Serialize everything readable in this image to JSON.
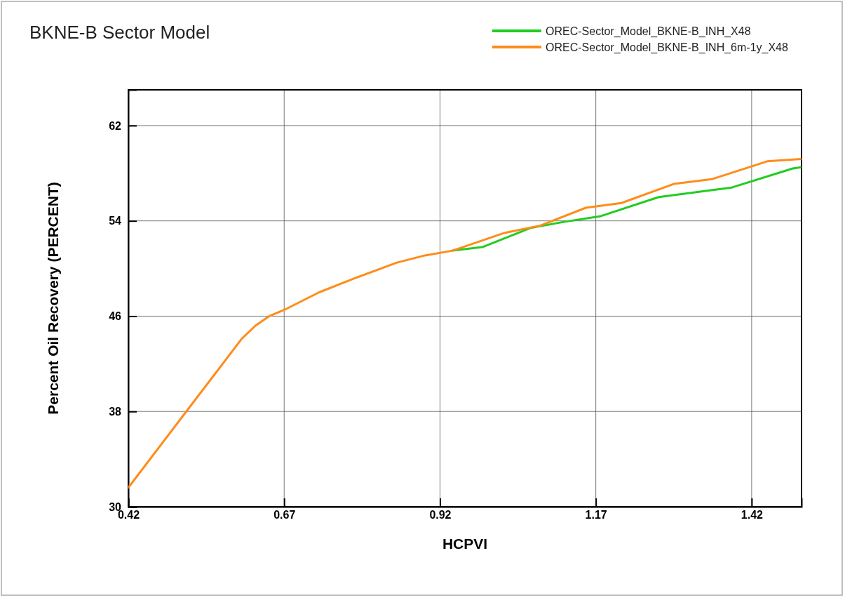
{
  "chart_data": {
    "type": "line",
    "title": "BKNE-B Sector Model",
    "xlabel": "HCPVI",
    "ylabel": "Percent Oil Recovery (PERCENT)",
    "xlim": [
      0.42,
      1.5
    ],
    "xticks": [
      0.42,
      0.67,
      0.92,
      1.17,
      1.42
    ],
    "ylim": [
      30,
      65
    ],
    "yticks": [
      30,
      38,
      46,
      54,
      62
    ],
    "grid": true,
    "legend": "top right",
    "series": [
      {
        "name": "OREC-Sector_Model_BKNE-B_INH_X48",
        "color": "#22cc22",
        "x": [
          0.94,
          0.988,
          1.065,
          1.117,
          1.178,
          1.271,
          1.388,
          1.486,
          1.5
        ],
        "values": [
          51.5,
          51.8,
          53.4,
          53.9,
          54.4,
          56.0,
          56.8,
          58.4,
          58.5
        ]
      },
      {
        "name": "OREC-Sector_Model_BKNE-B_INH_6m-1y_X48",
        "color": "#ff8c1a",
        "x": [
          0.42,
          0.513,
          0.602,
          0.624,
          0.646,
          0.673,
          0.726,
          0.784,
          0.851,
          0.896,
          0.94,
          1.024,
          1.081,
          1.154,
          1.211,
          1.295,
          1.356,
          1.445,
          1.5
        ],
        "values": [
          31.6,
          38.0,
          44.1,
          45.2,
          46.0,
          46.6,
          48.0,
          49.2,
          50.5,
          51.1,
          51.5,
          53.0,
          53.6,
          55.1,
          55.5,
          57.1,
          57.5,
          59.0,
          59.2
        ]
      }
    ]
  }
}
